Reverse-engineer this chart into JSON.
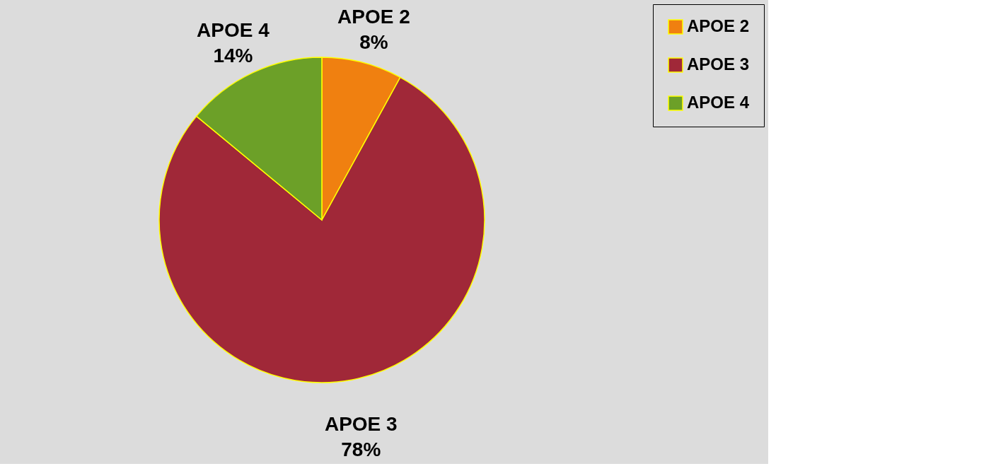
{
  "chart_data": {
    "type": "pie",
    "categories": [
      "APOE 2",
      "APOE 3",
      "APOE 4"
    ],
    "values": [
      8,
      78,
      14
    ],
    "colors": [
      "#f08010",
      "#a02838",
      "#6ca028"
    ],
    "value_labels": [
      "8%",
      "78%",
      "14%"
    ],
    "legend": "right"
  }
}
